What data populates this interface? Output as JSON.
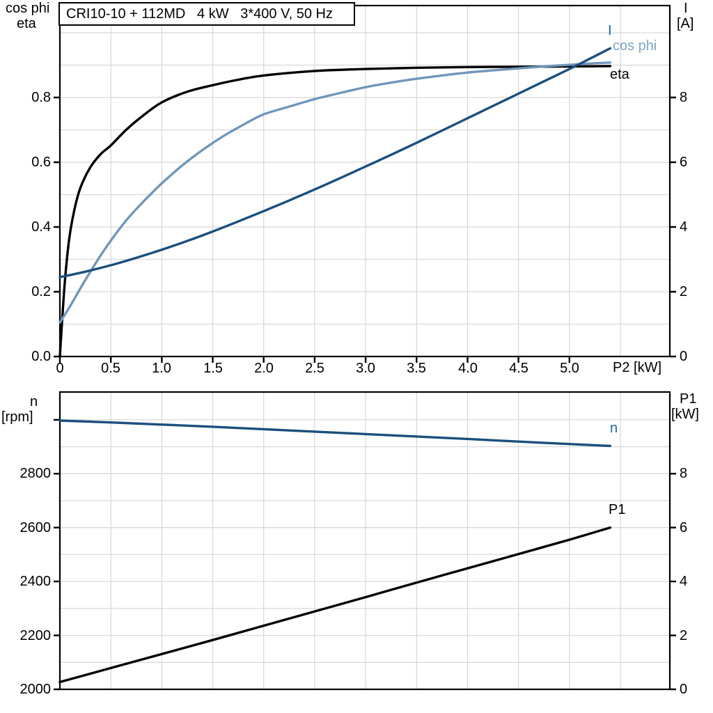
{
  "labels": {
    "title": "CRI10-10 + 112MD   4 kW   3*400 V, 50 Hz",
    "top_left_axis_line1": "cos phi",
    "top_left_axis_line2": "eta",
    "top_right_axis_line1": "I",
    "top_right_axis_line2": "[A]",
    "x_axis": "P2 [kW]",
    "bottom_left_axis_line1": "n",
    "bottom_left_axis_line2": "[rpm]",
    "bottom_right_axis_line1": "P1",
    "bottom_right_axis_line2": "[kW]",
    "curve_I": "I",
    "curve_cosphi": "cos phi",
    "curve_eta": "eta",
    "curve_n": "n",
    "curve_P1": "P1"
  },
  "colors": {
    "black": "#000000",
    "dark_blue": "#1b4e7d",
    "light_blue": "#7096ba",
    "label_blue": "#2063a5",
    "label_light_blue": "#7fa5c7",
    "grid": "#d8d8da",
    "axis": "#000000"
  },
  "chart_data": [
    {
      "type": "line",
      "title": "CRI10-10 + 112MD   4 kW   3*400 V, 50 Hz",
      "xlabel": "P2 [kW]",
      "ylabel_left": "cos phi / eta",
      "ylabel_right": "I [A]",
      "xlim": [
        0,
        5.985
      ],
      "ylim_left": [
        0,
        1.084
      ],
      "ylim_right": [
        0,
        10.84
      ],
      "grid": {
        "on": true,
        "x_step": 0.5,
        "y_axis": "left",
        "y_step": 0.1
      },
      "legend_position": "inline-right",
      "ticks": {
        "x": [
          {
            "v": 0,
            "t": "0"
          },
          {
            "v": 0.5,
            "t": "0.5"
          },
          {
            "v": 1,
            "t": "1.0"
          },
          {
            "v": 1.5,
            "t": "1.5"
          },
          {
            "v": 2,
            "t": "2.0"
          },
          {
            "v": 2.5,
            "t": "2.5"
          },
          {
            "v": 3,
            "t": "3.0"
          },
          {
            "v": 3.5,
            "t": "3.5"
          },
          {
            "v": 4,
            "t": "4.0"
          },
          {
            "v": 4.5,
            "t": "4.5"
          },
          {
            "v": 5,
            "t": "5.0"
          }
        ],
        "left": [
          {
            "v": 0,
            "t": "0.0"
          },
          {
            "v": 0.2,
            "t": "0.2"
          },
          {
            "v": 0.4,
            "t": "0.4"
          },
          {
            "v": 0.6,
            "t": "0.6"
          },
          {
            "v": 0.8,
            "t": "0.8"
          }
        ],
        "right": [
          {
            "v": 0,
            "t": "0"
          },
          {
            "v": 2,
            "t": "2"
          },
          {
            "v": 4,
            "t": "4"
          },
          {
            "v": 6,
            "t": "6"
          },
          {
            "v": 8,
            "t": "8"
          }
        ]
      },
      "series": [
        {
          "name": "eta",
          "axis": "left",
          "color": "black",
          "x": [
            0,
            0.02,
            0.05,
            0.09,
            0.14,
            0.2,
            0.3,
            0.4,
            0.5,
            0.65,
            0.8,
            1.0,
            1.25,
            1.5,
            1.75,
            2.0,
            2.5,
            3.0,
            3.5,
            4.0,
            4.5,
            5.0,
            5.4
          ],
          "y": [
            0,
            0.1,
            0.235,
            0.36,
            0.45,
            0.52,
            0.585,
            0.625,
            0.652,
            0.7,
            0.74,
            0.785,
            0.818,
            0.838,
            0.855,
            0.868,
            0.882,
            0.888,
            0.892,
            0.894,
            0.895,
            0.896,
            0.897
          ]
        },
        {
          "name": "cos phi",
          "axis": "left",
          "color": "light_blue",
          "x": [
            0,
            0.1,
            0.2,
            0.3,
            0.4,
            0.5,
            0.65,
            0.8,
            1.0,
            1.2,
            1.4,
            1.6,
            1.8,
            2.0,
            2.25,
            2.5,
            2.75,
            3.0,
            3.25,
            3.5,
            3.75,
            4.0,
            4.25,
            4.5,
            4.75,
            5.0,
            5.2,
            5.4
          ],
          "y": [
            0.105,
            0.155,
            0.21,
            0.262,
            0.312,
            0.358,
            0.42,
            0.472,
            0.535,
            0.59,
            0.638,
            0.68,
            0.716,
            0.748,
            0.772,
            0.795,
            0.814,
            0.832,
            0.846,
            0.858,
            0.868,
            0.877,
            0.884,
            0.89,
            0.896,
            0.901,
            0.905,
            0.908
          ]
        },
        {
          "name": "I",
          "axis": "right",
          "color": "dark_blue",
          "x": [
            0,
            0.25,
            0.5,
            0.75,
            1.0,
            1.25,
            1.5,
            1.75,
            2.0,
            2.25,
            2.5,
            2.75,
            3.0,
            3.25,
            3.5,
            3.75,
            4.0,
            4.25,
            4.5,
            4.75,
            5.0,
            5.2,
            5.4
          ],
          "y": [
            2.45,
            2.62,
            2.82,
            3.05,
            3.3,
            3.57,
            3.86,
            4.17,
            4.49,
            4.82,
            5.16,
            5.51,
            5.87,
            6.23,
            6.6,
            6.98,
            7.36,
            7.74,
            8.12,
            8.5,
            8.88,
            9.2,
            9.52
          ]
        }
      ]
    },
    {
      "type": "line",
      "title": "",
      "xlabel": "",
      "ylabel_left": "n [rpm]",
      "ylabel_right": "P1 [kW]",
      "xlim": [
        0,
        5.985
      ],
      "ylim_left": [
        2000,
        3103
      ],
      "ylim_right": [
        0,
        11.03
      ],
      "grid": {
        "on": true,
        "x_step": 0.5,
        "y_axis": "right",
        "y_step": 1
      },
      "legend_position": "inline-right",
      "ticks": {
        "x": [],
        "left": [
          {
            "v": 2000,
            "t": "2000"
          },
          {
            "v": 2200,
            "t": "2200"
          },
          {
            "v": 2400,
            "t": "2400"
          },
          {
            "v": 2600,
            "t": "2600"
          },
          {
            "v": 2800,
            "t": "2800"
          },
          {
            "v": 3000,
            "t": ""
          }
        ],
        "right": [
          {
            "v": 0,
            "t": "0"
          },
          {
            "v": 2,
            "t": "2"
          },
          {
            "v": 4,
            "t": "4"
          },
          {
            "v": 6,
            "t": "6"
          },
          {
            "v": 8,
            "t": "8"
          }
        ]
      },
      "series": [
        {
          "name": "n",
          "axis": "left",
          "color": "dark_blue",
          "x": [
            0,
            0.5,
            1,
            1.5,
            2,
            2.5,
            3,
            3.5,
            4,
            4.5,
            5,
            5.4
          ],
          "y": [
            2997,
            2990,
            2982,
            2974,
            2965,
            2956,
            2947,
            2938,
            2929,
            2919,
            2910,
            2903
          ]
        },
        {
          "name": "P1",
          "axis": "right",
          "color": "black",
          "x": [
            0,
            0.5,
            1,
            1.5,
            2,
            2.5,
            3,
            3.5,
            4,
            4.5,
            5,
            5.4
          ],
          "y": [
            0.27,
            0.79,
            1.31,
            1.83,
            2.36,
            2.89,
            3.42,
            3.96,
            4.49,
            5.02,
            5.55,
            6.0
          ]
        }
      ]
    }
  ]
}
